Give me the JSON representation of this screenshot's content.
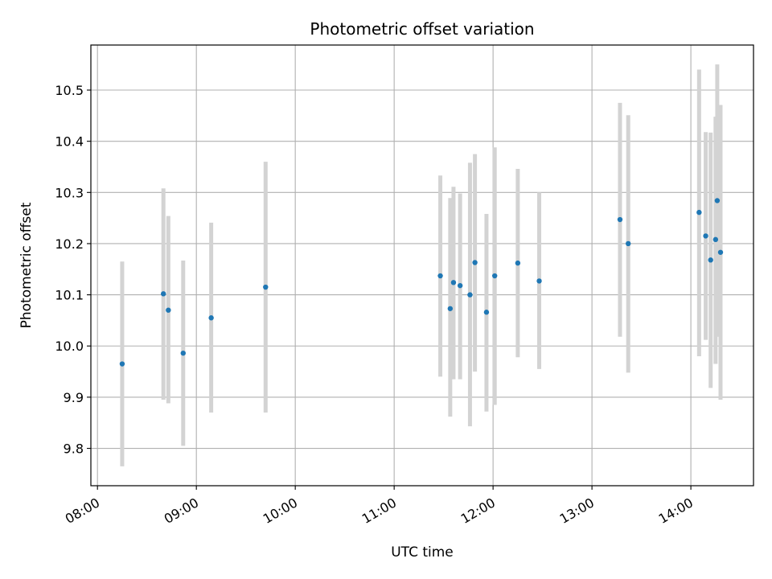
{
  "chart_data": {
    "type": "scatter",
    "title": "Photometric offset variation",
    "xlabel": "UTC time",
    "ylabel": "Photometric offset",
    "x_tick_labels": [
      "08:00",
      "09:00",
      "10:00",
      "11:00",
      "12:00",
      "13:00",
      "14:00"
    ],
    "x_ticks_hours": [
      8,
      9,
      10,
      11,
      12,
      13,
      14
    ],
    "y_ticks": [
      9.8,
      9.9,
      10.0,
      10.1,
      10.2,
      10.3,
      10.4,
      10.5
    ],
    "y_tick_labels": [
      "9.8",
      "9.9",
      "10.0",
      "10.1",
      "10.2",
      "10.3",
      "10.4",
      "10.5"
    ],
    "xlim": [
      "07:56",
      "14:38"
    ],
    "ylim": [
      9.727,
      10.588
    ],
    "grid": true,
    "colors": {
      "point": "#1f77b4",
      "errorbar": "#d3d3d3",
      "grid": "#b0b0b0"
    },
    "points": [
      {
        "x": "08:15",
        "y": 9.965,
        "yerr_low": 9.765,
        "yerr_high": 10.165
      },
      {
        "x": "08:40",
        "y": 10.102,
        "yerr_low": 9.895,
        "yerr_high": 10.308
      },
      {
        "x": "08:43",
        "y": 10.07,
        "yerr_low": 9.888,
        "yerr_high": 10.254
      },
      {
        "x": "08:52",
        "y": 9.986,
        "yerr_low": 9.805,
        "yerr_high": 10.167
      },
      {
        "x": "09:09",
        "y": 10.055,
        "yerr_low": 9.87,
        "yerr_high": 10.241
      },
      {
        "x": "09:42",
        "y": 10.115,
        "yerr_low": 9.87,
        "yerr_high": 10.36
      },
      {
        "x": "11:28",
        "y": 10.137,
        "yerr_low": 9.94,
        "yerr_high": 10.333
      },
      {
        "x": "11:34",
        "y": 10.073,
        "yerr_low": 9.862,
        "yerr_high": 10.289
      },
      {
        "x": "11:36",
        "y": 10.124,
        "yerr_low": 9.935,
        "yerr_high": 10.311
      },
      {
        "x": "11:40",
        "y": 10.118,
        "yerr_low": 9.935,
        "yerr_high": 10.298
      },
      {
        "x": "11:46",
        "y": 10.1,
        "yerr_low": 9.843,
        "yerr_high": 10.358
      },
      {
        "x": "11:49",
        "y": 10.163,
        "yerr_low": 9.95,
        "yerr_high": 10.375
      },
      {
        "x": "11:56",
        "y": 10.066,
        "yerr_low": 9.872,
        "yerr_high": 10.258
      },
      {
        "x": "12:01",
        "y": 10.137,
        "yerr_low": 9.885,
        "yerr_high": 10.388
      },
      {
        "x": "12:15",
        "y": 10.162,
        "yerr_low": 9.978,
        "yerr_high": 10.346
      },
      {
        "x": "12:28",
        "y": 10.127,
        "yerr_low": 9.955,
        "yerr_high": 10.3
      },
      {
        "x": "13:17",
        "y": 10.247,
        "yerr_low": 10.018,
        "yerr_high": 10.475
      },
      {
        "x": "13:22",
        "y": 10.2,
        "yerr_low": 9.948,
        "yerr_high": 10.451
      },
      {
        "x": "14:05",
        "y": 10.261,
        "yerr_low": 9.98,
        "yerr_high": 10.54
      },
      {
        "x": "14:09",
        "y": 10.215,
        "yerr_low": 10.012,
        "yerr_high": 10.418
      },
      {
        "x": "14:12",
        "y": 10.168,
        "yerr_low": 9.918,
        "yerr_high": 10.417
      },
      {
        "x": "14:15",
        "y": 10.208,
        "yerr_low": 9.965,
        "yerr_high": 10.448
      },
      {
        "x": "14:16",
        "y": 10.284,
        "yerr_low": 10.018,
        "yerr_high": 10.55
      },
      {
        "x": "14:18",
        "y": 10.183,
        "yerr_low": 9.895,
        "yerr_high": 10.471
      }
    ]
  }
}
